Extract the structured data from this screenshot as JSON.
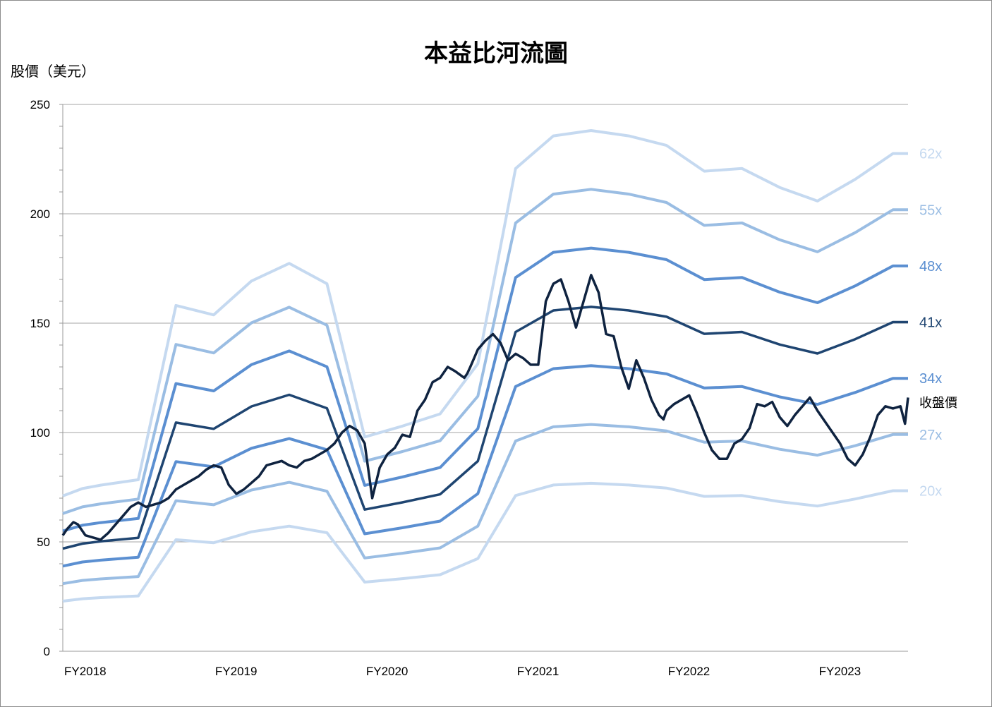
{
  "chart_data": {
    "type": "line",
    "title": "本益比河流圖",
    "ylabel": "股價（美元）",
    "xlabel": "",
    "ylim": [
      0,
      250
    ],
    "yticks": [
      0,
      50,
      100,
      150,
      200,
      250
    ],
    "xlim": [
      2018.0,
      2023.6
    ],
    "xticks": [
      {
        "label": "FY2018",
        "x": 2018.0
      },
      {
        "label": "FY2019",
        "x": 2019.0
      },
      {
        "label": "FY2020",
        "x": 2020.0
      },
      {
        "label": "FY2021",
        "x": 2021.0
      },
      {
        "label": "FY2022",
        "x": 2022.0
      },
      {
        "label": "FY2023",
        "x": 2023.0
      }
    ],
    "grid": "horizontal",
    "legend": "right",
    "eps_x": [
      2018.0,
      2018.13,
      2018.25,
      2018.5,
      2018.75,
      2019.0,
      2019.25,
      2019.5,
      2019.75,
      2020.0,
      2020.25,
      2020.5,
      2020.75,
      2021.0,
      2021.25,
      2021.5,
      2021.75,
      2022.0,
      2022.25,
      2022.5,
      2022.75,
      2023.0,
      2023.25,
      2023.5,
      2023.6
    ],
    "eps": [
      1.145,
      1.2,
      1.225,
      1.265,
      2.55,
      2.48,
      2.73,
      2.86,
      2.71,
      1.58,
      1.66,
      1.75,
      2.12,
      3.56,
      3.8,
      3.84,
      3.8,
      3.73,
      3.54,
      3.56,
      3.42,
      3.32,
      3.48,
      3.67,
      3.67
    ],
    "series": [
      {
        "name": "62x",
        "multiple": 62,
        "color": "#c5d9f0",
        "width": 4
      },
      {
        "name": "55x",
        "multiple": 55,
        "color": "#9abde3",
        "width": 4
      },
      {
        "name": "48x",
        "multiple": 48,
        "color": "#5b8fd1",
        "width": 4
      },
      {
        "name": "41x",
        "multiple": 41,
        "color": "#1f4571",
        "width": 3.5
      },
      {
        "name": "34x",
        "multiple": 34,
        "color": "#5b8fd1",
        "width": 4
      },
      {
        "name": "27x",
        "multiple": 27,
        "color": "#9abde3",
        "width": 4
      },
      {
        "name": "20x",
        "multiple": 20,
        "color": "#c5d9f0",
        "width": 4
      }
    ],
    "price": {
      "name": "收盤價",
      "color": "#0f2340",
      "x": [
        2018.0,
        2018.03,
        2018.07,
        2018.1,
        2018.15,
        2018.2,
        2018.25,
        2018.3,
        2018.35,
        2018.4,
        2018.45,
        2018.5,
        2018.55,
        2018.6,
        2018.65,
        2018.7,
        2018.75,
        2018.8,
        2018.85,
        2018.9,
        2018.95,
        2019.0,
        2019.05,
        2019.1,
        2019.15,
        2019.2,
        2019.25,
        2019.3,
        2019.35,
        2019.4,
        2019.45,
        2019.5,
        2019.55,
        2019.6,
        2019.65,
        2019.7,
        2019.75,
        2019.8,
        2019.85,
        2019.9,
        2019.95,
        2020.0,
        2020.05,
        2020.1,
        2020.15,
        2020.2,
        2020.25,
        2020.3,
        2020.35,
        2020.4,
        2020.45,
        2020.5,
        2020.55,
        2020.6,
        2020.62,
        2020.64,
        2020.66,
        2020.68,
        2020.7,
        2020.75,
        2020.8,
        2020.85,
        2020.9,
        2020.95,
        2021.0,
        2021.05,
        2021.1,
        2021.15,
        2021.2,
        2021.25,
        2021.3,
        2021.35,
        2021.4,
        2021.45,
        2021.5,
        2021.55,
        2021.6,
        2021.65,
        2021.7,
        2021.75,
        2021.8,
        2021.85,
        2021.9,
        2021.95,
        2021.98,
        2022.0,
        2022.05,
        2022.1,
        2022.15,
        2022.2,
        2022.25,
        2022.3,
        2022.35,
        2022.4,
        2022.45,
        2022.5,
        2022.55,
        2022.6,
        2022.65,
        2022.7,
        2022.75,
        2022.8,
        2022.85,
        2022.9,
        2022.95,
        2023.0,
        2023.05,
        2023.1,
        2023.15,
        2023.2,
        2023.25,
        2023.3,
        2023.35,
        2023.4,
        2023.45,
        2023.5,
        2023.55,
        2023.58,
        2023.6
      ],
      "y": [
        53,
        56,
        59,
        58,
        53,
        52,
        51,
        54,
        58,
        62,
        66,
        68,
        66,
        67,
        68,
        70,
        74,
        76,
        78,
        80,
        83,
        85,
        84,
        76,
        72,
        74,
        77,
        80,
        85,
        86,
        87,
        85,
        84,
        87,
        88,
        90,
        92,
        95,
        100,
        103,
        101,
        95,
        70,
        84,
        90,
        93,
        99,
        98,
        110,
        115,
        123,
        125,
        130,
        128,
        127,
        126,
        125,
        127,
        130,
        138,
        142,
        145,
        141,
        133,
        136,
        134,
        131,
        131,
        160,
        168,
        170,
        160,
        148,
        160,
        172,
        164,
        145,
        144,
        130,
        120,
        133,
        125,
        115,
        108,
        106,
        110,
        113,
        115,
        117,
        109,
        100,
        92,
        88,
        88,
        95,
        97,
        102,
        113,
        112,
        114,
        107,
        103,
        108,
        112,
        116,
        110,
        105,
        100,
        95,
        88,
        85,
        90,
        98,
        108,
        112,
        111,
        112,
        104,
        116
      ]
    }
  }
}
